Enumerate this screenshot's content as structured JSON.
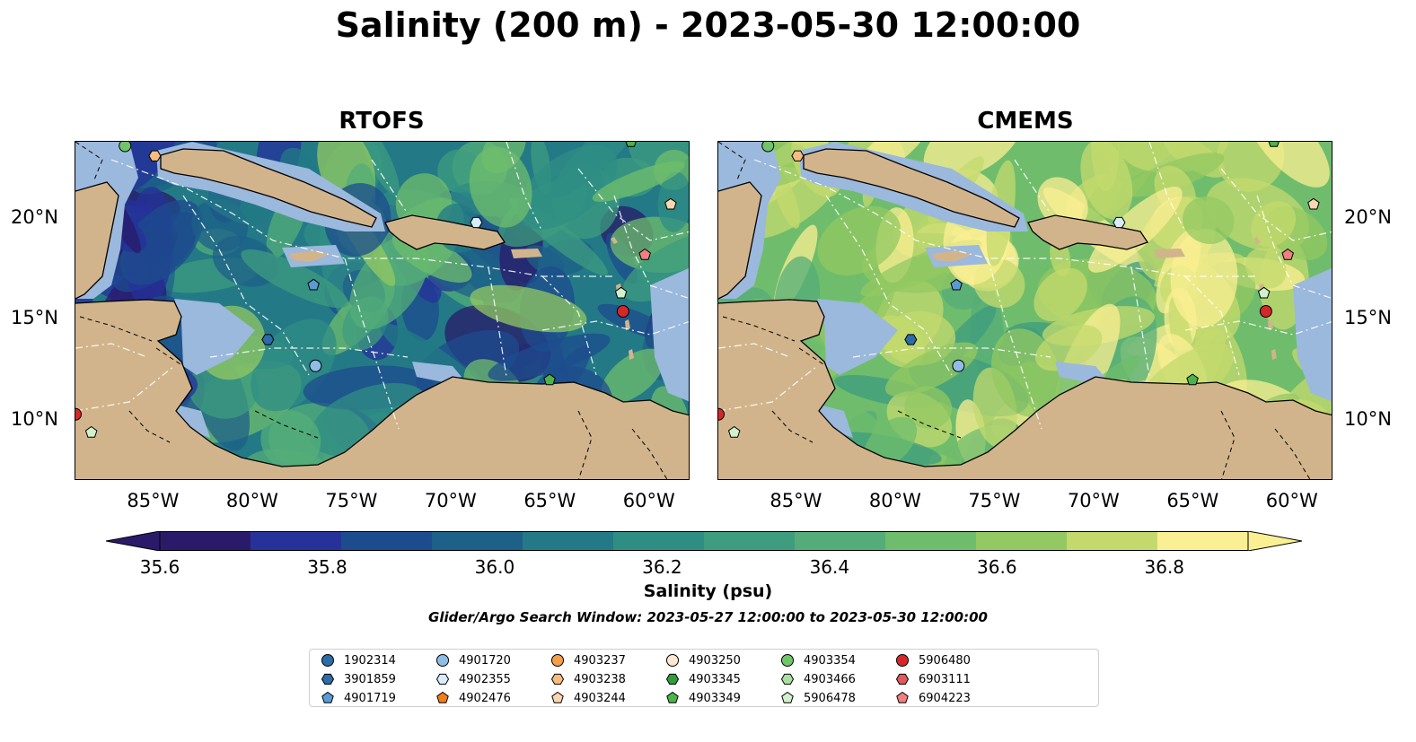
{
  "figure": {
    "title": "Salinity (200 m) - 2023-05-30 12:00:00",
    "panels": [
      {
        "title": "RTOFS",
        "palette": "rtofs"
      },
      {
        "title": "CMEMS",
        "palette": "cmems"
      }
    ],
    "lon_ticks": [
      "85°W",
      "80°W",
      "75°W",
      "70°W",
      "65°W",
      "60°W"
    ],
    "lat_ticks": [
      "20°N",
      "15°N",
      "10°N"
    ],
    "colorbar": {
      "label": "Salinity (psu)",
      "ticks": [
        "35.6",
        "35.8",
        "36.0",
        "36.2",
        "36.4",
        "36.6",
        "36.8"
      ],
      "min": 35.6,
      "max": 36.9,
      "colors": [
        "#2a1b6a",
        "#26329a",
        "#1d4c8e",
        "#1d6088",
        "#237a86",
        "#2f8e84",
        "#3e9c7f",
        "#54ad78",
        "#6fbd6c",
        "#93c862",
        "#c3d96e",
        "#fbef93"
      ]
    },
    "search_window": "Glider/Argo Search Window: 2023-05-27 12:00:00 to 2023-05-30 12:00:00",
    "colors": {
      "land": "#d2b48c",
      "shelf": "#9bb8dd",
      "coast": "#000000",
      "deep_low": "#2a1b6a"
    }
  },
  "legend": {
    "entries": [
      {
        "id": "1902314",
        "marker": "circle",
        "color": "#2c6ca8"
      },
      {
        "id": "3901859",
        "marker": "hexagon",
        "color": "#2c6ca8"
      },
      {
        "id": "4901719",
        "marker": "pentagon",
        "color": "#5b9bd5"
      },
      {
        "id": "4901720",
        "marker": "circle",
        "color": "#8fbde6"
      },
      {
        "id": "4902355",
        "marker": "hexagon",
        "color": "#d8ecfb"
      },
      {
        "id": "4902476",
        "marker": "pentagon",
        "color": "#f07f1a"
      },
      {
        "id": "4903237",
        "marker": "circle",
        "color": "#f4a04a"
      },
      {
        "id": "4903238",
        "marker": "hexagon",
        "color": "#f7bc80"
      },
      {
        "id": "4903244",
        "marker": "pentagon",
        "color": "#fbd7b1"
      },
      {
        "id": "4903250",
        "marker": "circle",
        "color": "#fde6d2"
      },
      {
        "id": "4903345",
        "marker": "hexagon",
        "color": "#2f9e3a"
      },
      {
        "id": "4903349",
        "marker": "pentagon",
        "color": "#4cb34a"
      },
      {
        "id": "4903354",
        "marker": "circle",
        "color": "#70c56a"
      },
      {
        "id": "4903466",
        "marker": "hexagon",
        "color": "#a9e0a2"
      },
      {
        "id": "5906478",
        "marker": "pentagon",
        "color": "#d3f0cd"
      },
      {
        "id": "5906480",
        "marker": "circle",
        "color": "#d62728"
      },
      {
        "id": "6903111",
        "marker": "hexagon",
        "color": "#e05a5a"
      },
      {
        "id": "6904223",
        "marker": "pentagon",
        "color": "#f08080"
      }
    ]
  },
  "floats_on_map": [
    {
      "id": "4903354",
      "lon": -86.5,
      "lat": 23.6
    },
    {
      "id": "4903238",
      "lon": -85.0,
      "lat": 23.1
    },
    {
      "id": "4903349",
      "lon": -61.0,
      "lat": 23.8
    },
    {
      "id": "4903244",
      "lon": -59.0,
      "lat": 20.7
    },
    {
      "id": "4902355",
      "lon": -68.8,
      "lat": 19.8
    },
    {
      "id": "6904223",
      "lon": -60.3,
      "lat": 18.2
    },
    {
      "id": "4901719",
      "lon": -77.0,
      "lat": 16.7
    },
    {
      "id": "5906478",
      "lon": -61.5,
      "lat": 16.3
    },
    {
      "id": "5906480",
      "lon": -61.4,
      "lat": 15.4
    },
    {
      "id": "3901859",
      "lon": -79.3,
      "lat": 14.0
    },
    {
      "id": "4901720",
      "lon": -76.9,
      "lat": 12.7
    },
    {
      "id": "4903349",
      "lon": -65.1,
      "lat": 12.0
    },
    {
      "id": "5906478",
      "lon": -88.2,
      "lat": 9.4
    },
    {
      "id": "5906480",
      "lon": -89.0,
      "lat": 10.3
    }
  ]
}
